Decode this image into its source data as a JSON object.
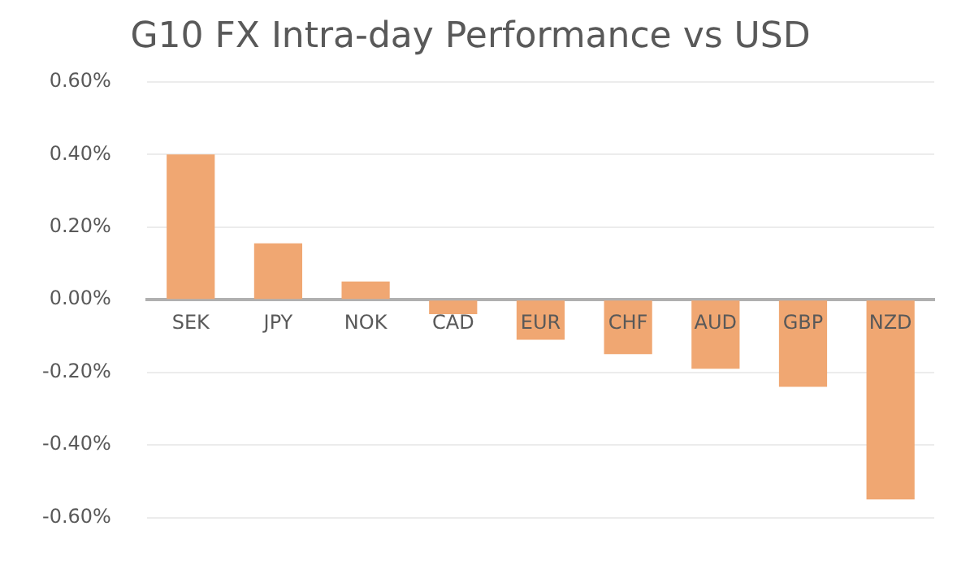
{
  "chart_data": {
    "type": "bar",
    "title": "G10 FX Intra-day Performance vs USD",
    "categories": [
      "SEK",
      "JPY",
      "NOK",
      "CAD",
      "EUR",
      "CHF",
      "AUD",
      "GBP",
      "NZD"
    ],
    "values": [
      0.4,
      0.155,
      0.05,
      -0.04,
      -0.11,
      -0.15,
      -0.19,
      -0.24,
      -0.55
    ],
    "color": "#f0a772",
    "ylim": [
      -0.6,
      0.6
    ],
    "yticks": [
      {
        "value": 0.6,
        "label": "0.60%"
      },
      {
        "value": 0.4,
        "label": "0.40%"
      },
      {
        "value": 0.2,
        "label": "0.20%"
      },
      {
        "value": 0,
        "label": "0.00%"
      },
      {
        "value": -0.2,
        "label": "-0.20%"
      },
      {
        "value": -0.4,
        "label": "-0.40%"
      },
      {
        "value": -0.6,
        "label": "-0.60%"
      }
    ],
    "grid": "y",
    "legend": false
  }
}
